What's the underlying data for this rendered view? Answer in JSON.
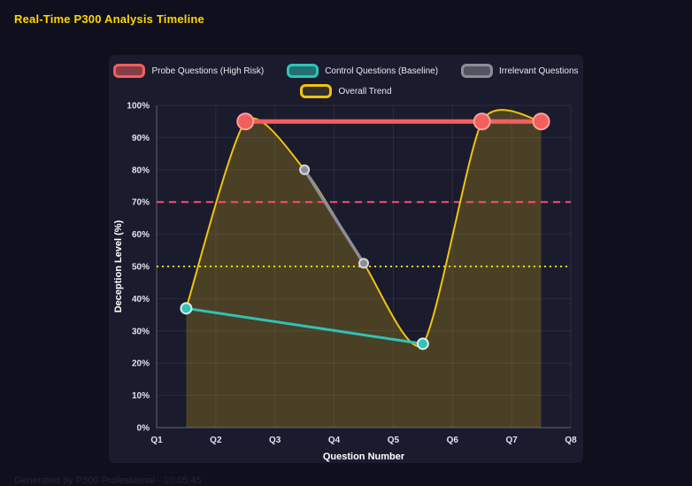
{
  "header": {
    "title": "Real-Time P300 Analysis Timeline"
  },
  "footer": {
    "note": "Generated by P300 Professional - 10:05:45"
  },
  "chart_data": {
    "type": "line",
    "title": "",
    "xlabel": "Question Number",
    "ylabel": "Deception Level (%)",
    "x_ticks": [
      "Q1",
      "Q2",
      "Q3",
      "Q4",
      "Q5",
      "Q6",
      "Q7",
      "Q8"
    ],
    "x_range": [
      1,
      8
    ],
    "ylim": [
      0,
      100
    ],
    "y_tick_step": 10,
    "y_tick_suffix": "%",
    "grid": true,
    "legend_position": "top",
    "legend_rows": [
      [
        0,
        1,
        2
      ],
      [
        3
      ]
    ],
    "series": [
      {
        "name": "Probe Questions (High Risk)",
        "color": "#f25f5c",
        "x": [
          2.5,
          6.5,
          7.5
        ],
        "values": [
          95,
          95,
          95
        ],
        "line_width": 5,
        "point_radius": 9,
        "point_border": "#f9a19f",
        "swatch_alpha": 0.5
      },
      {
        "name": "Control Questions (Baseline)",
        "color": "#2ec4b6",
        "x": [
          1.5,
          5.5
        ],
        "values": [
          37,
          26
        ],
        "line_width": 3,
        "point_radius": 6,
        "point_border": "#dcecea",
        "swatch_alpha": 0.5
      },
      {
        "name": "Irrelevant Questions",
        "color": "#8d8d98",
        "x": [
          3.5,
          4.5
        ],
        "values": [
          80,
          51
        ],
        "line_width": 3.5,
        "point_radius": 5,
        "point_border": "#d9d9df",
        "swatch_alpha": 0.5
      },
      {
        "name": "Overall Trend",
        "color": "#f0c30f",
        "x": [
          1.5,
          2.5,
          3.5,
          4.5,
          5.5,
          6.5,
          7.5
        ],
        "values": [
          37,
          95,
          80,
          51,
          26,
          95,
          95
        ],
        "line_width": 2,
        "point_radius": 0,
        "point_border": "#f0c30f",
        "smooth": true,
        "fill": true,
        "fill_color": "rgba(240,195,15,0.22)",
        "swatch_alpha": 0.12
      }
    ],
    "thresholds": [
      {
        "label": "high-risk-threshold",
        "value": 70,
        "color": "#ff4d6d",
        "style": "dashed"
      },
      {
        "label": "baseline-threshold",
        "value": 50,
        "color": "#ffd700",
        "style": "dotted"
      }
    ]
  }
}
